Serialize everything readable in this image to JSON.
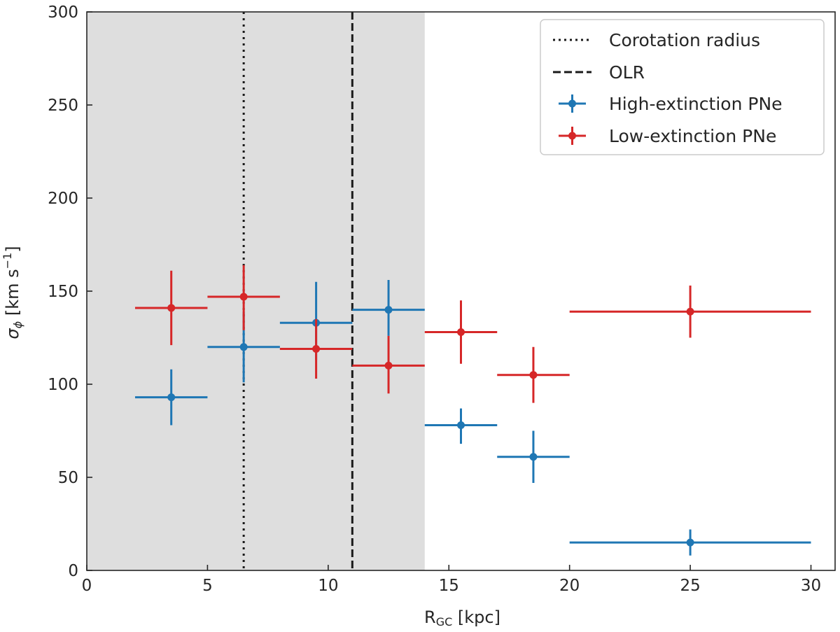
{
  "chart_data": {
    "type": "scatter",
    "title": "",
    "xlabel": {
      "main": "R",
      "sub": "GC",
      "rest": " [kpc]"
    },
    "ylabel": {
      "main": "σ",
      "sub": "ϕ",
      "rest": " [km s",
      "sup": "−1",
      "end": "]"
    },
    "xlim": [
      0,
      31
    ],
    "ylim": [
      0,
      300
    ],
    "xticks": [
      0,
      5,
      10,
      15,
      20,
      25,
      30
    ],
    "yticks": [
      0,
      50,
      100,
      150,
      200,
      250,
      300
    ],
    "shaded_region": {
      "x0": 0,
      "x1": 14,
      "color": "#dedede"
    },
    "vlines": [
      {
        "name": "Corotation radius",
        "x": 6.5,
        "style": "dotted",
        "color": "#1a1a1a"
      },
      {
        "name": "OLR",
        "x": 11,
        "style": "dashed",
        "color": "#1a1a1a"
      }
    ],
    "series": [
      {
        "name": "High-extinction PNe",
        "color": "#1f77b4",
        "points": [
          {
            "x": 3.5,
            "y": 93,
            "xerr": 1.5,
            "yerr_low": 15,
            "yerr_high": 15
          },
          {
            "x": 6.5,
            "y": 120,
            "xerr": 1.5,
            "yerr_low": 19,
            "yerr_high": 19
          },
          {
            "x": 9.5,
            "y": 133,
            "xerr": 1.5,
            "yerr_low": 20,
            "yerr_high": 22
          },
          {
            "x": 12.5,
            "y": 140,
            "xerr": 1.5,
            "yerr_low": 14,
            "yerr_high": 16
          },
          {
            "x": 15.5,
            "y": 78,
            "xerr": 1.5,
            "yerr_low": 10,
            "yerr_high": 9
          },
          {
            "x": 18.5,
            "y": 61,
            "xerr": 1.5,
            "yerr_low": 14,
            "yerr_high": 14
          },
          {
            "x": 25,
            "y": 15,
            "xerr": 5,
            "yerr_low": 7,
            "yerr_high": 7
          }
        ]
      },
      {
        "name": "Low-extinction PNe",
        "color": "#d62728",
        "points": [
          {
            "x": 3.5,
            "y": 141,
            "xerr": 1.5,
            "yerr_low": 20,
            "yerr_high": 20
          },
          {
            "x": 6.5,
            "y": 147,
            "xerr": 1.5,
            "yerr_low": 18,
            "yerr_high": 17
          },
          {
            "x": 9.5,
            "y": 119,
            "xerr": 1.5,
            "yerr_low": 16,
            "yerr_high": 16
          },
          {
            "x": 12.5,
            "y": 110,
            "xerr": 1.5,
            "yerr_low": 15,
            "yerr_high": 16
          },
          {
            "x": 15.5,
            "y": 128,
            "xerr": 1.5,
            "yerr_low": 17,
            "yerr_high": 17
          },
          {
            "x": 18.5,
            "y": 105,
            "xerr": 1.5,
            "yerr_low": 15,
            "yerr_high": 15
          },
          {
            "x": 25,
            "y": 139,
            "xerr": 5,
            "yerr_low": 14,
            "yerr_high": 14
          }
        ]
      }
    ],
    "legend": {
      "location": "top-right",
      "entries": [
        {
          "label": "Corotation radius",
          "kind": "dotted"
        },
        {
          "label": "OLR",
          "kind": "dashed"
        },
        {
          "label": "High-extinction PNe",
          "kind": "errorbar",
          "color": "#1f77b4"
        },
        {
          "label": "Low-extinction PNe",
          "kind": "errorbar",
          "color": "#d62728"
        }
      ]
    }
  }
}
